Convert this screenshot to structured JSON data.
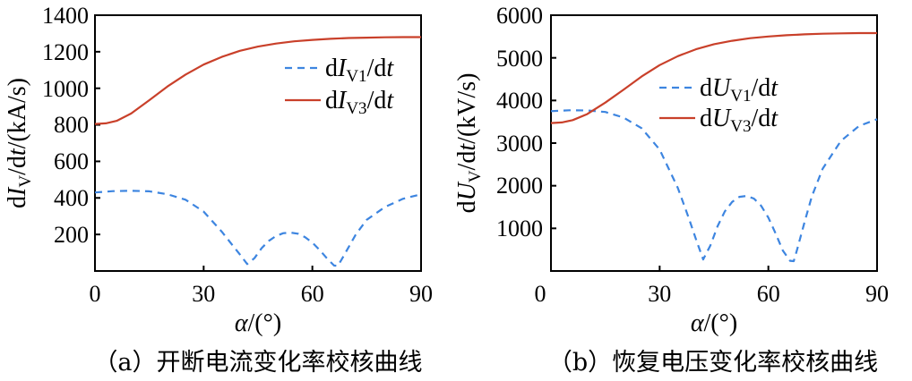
{
  "chart_data": [
    {
      "type": "line",
      "caption": "（a）开断电流变化率校核曲线",
      "xlabel": "α/(°)",
      "ylabel": "dI_V/dt/(kA/s)",
      "ylabel_parts": {
        "pre": "d",
        "var": "I",
        "sub": "V",
        "post": "/d",
        "var2": "t",
        "unit": "/(kA/s)"
      },
      "xlim": [
        0,
        90
      ],
      "ylim": [
        0,
        1400
      ],
      "x_ticks": [
        "0",
        "30",
        "60",
        "90"
      ],
      "y_ticks": [
        "200",
        "400",
        "600",
        "800",
        "1000",
        "1200",
        "1400"
      ],
      "legend_position": "upper-right",
      "series": [
        {
          "name": "dI_V1/dt",
          "legend": {
            "pre": "d",
            "var": "I",
            "sub": "V1",
            "post": "/d",
            "var2": "t"
          },
          "color": "#3d85e0",
          "style": "dashed",
          "x": [
            0,
            5,
            10,
            15,
            20,
            25,
            30,
            35,
            38,
            40,
            42,
            44,
            46,
            48,
            50,
            52,
            54,
            56,
            58,
            60,
            62,
            64,
            66,
            67,
            68,
            70,
            72,
            75,
            80,
            85,
            90
          ],
          "y": [
            430,
            437,
            439,
            436,
            420,
            390,
            325,
            215,
            140,
            90,
            38,
            70,
            125,
            165,
            192,
            207,
            210,
            204,
            185,
            155,
            115,
            70,
            30,
            28,
            60,
            130,
            200,
            280,
            350,
            395,
            420
          ]
        },
        {
          "name": "dI_V3/dt",
          "legend": {
            "pre": "d",
            "var": "I",
            "sub": "V3",
            "post": "/d",
            "var2": "t"
          },
          "color": "#c9402a",
          "style": "solid",
          "x": [
            0,
            3,
            6,
            10,
            15,
            20,
            25,
            30,
            35,
            40,
            45,
            50,
            55,
            60,
            65,
            70,
            75,
            80,
            85,
            90
          ],
          "y": [
            805,
            808,
            822,
            862,
            935,
            1010,
            1075,
            1130,
            1172,
            1205,
            1228,
            1245,
            1257,
            1265,
            1271,
            1275,
            1277,
            1279,
            1280,
            1280
          ]
        }
      ]
    },
    {
      "type": "line",
      "caption": "（b）恢复电压变化率校核曲线",
      "xlabel": "α/(°)",
      "ylabel": "dU_V/dt/(kV/s)",
      "ylabel_parts": {
        "pre": "d",
        "var": "U",
        "sub": "V",
        "post": "/d",
        "var2": "t",
        "unit": "/(kV/s)"
      },
      "xlim": [
        0,
        90
      ],
      "ylim": [
        0,
        6000
      ],
      "x_ticks": [
        "0",
        "30",
        "60",
        "90"
      ],
      "y_ticks": [
        "1000",
        "2000",
        "3000",
        "4000",
        "5000",
        "6000"
      ],
      "legend_position": "upper-right",
      "series": [
        {
          "name": "dU_V1/dt",
          "legend": {
            "pre": "d",
            "var": "U",
            "sub": "V1",
            "post": "/d",
            "var2": "t"
          },
          "color": "#3d85e0",
          "style": "dashed",
          "x": [
            0,
            5,
            10,
            15,
            20,
            25,
            30,
            35,
            38,
            40,
            42,
            44,
            46,
            48,
            50,
            52,
            54,
            56,
            58,
            60,
            62,
            64,
            66,
            67,
            68,
            70,
            72,
            75,
            80,
            85,
            90
          ],
          "y": [
            3750,
            3770,
            3765,
            3730,
            3600,
            3350,
            2850,
            1950,
            1250,
            750,
            270,
            600,
            1050,
            1400,
            1620,
            1740,
            1760,
            1700,
            1530,
            1250,
            880,
            480,
            240,
            230,
            520,
            1150,
            1750,
            2400,
            3050,
            3400,
            3560
          ]
        },
        {
          "name": "dU_V3/dt",
          "legend": {
            "pre": "d",
            "var": "U",
            "sub": "V3",
            "post": "/d",
            "var2": "t"
          },
          "color": "#c9402a",
          "style": "solid",
          "x": [
            0,
            3,
            6,
            10,
            15,
            20,
            25,
            30,
            35,
            40,
            45,
            50,
            55,
            60,
            65,
            70,
            75,
            80,
            85,
            90
          ],
          "y": [
            3470,
            3485,
            3540,
            3680,
            3950,
            4250,
            4560,
            4830,
            5040,
            5200,
            5320,
            5400,
            5460,
            5500,
            5530,
            5550,
            5565,
            5575,
            5580,
            5580
          ]
        }
      ]
    }
  ]
}
